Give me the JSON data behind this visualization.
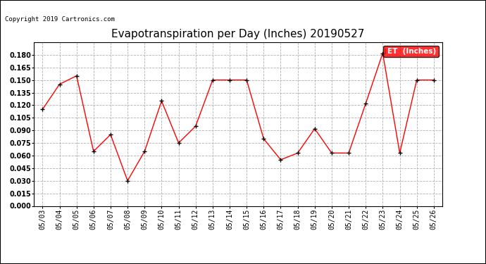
{
  "title": "Evapotranspiration per Day (Inches) 20190527",
  "copyright": "Copyright 2019 Cartronics.com",
  "legend_label": "ET  (Inches)",
  "dates": [
    "05/03",
    "05/04",
    "05/05",
    "05/06",
    "05/07",
    "05/08",
    "05/09",
    "05/10",
    "05/11",
    "05/12",
    "05/13",
    "05/14",
    "05/15",
    "05/16",
    "05/17",
    "05/18",
    "05/19",
    "05/20",
    "05/21",
    "05/22",
    "05/23",
    "05/24",
    "05/25",
    "05/26"
  ],
  "values": [
    0.115,
    0.145,
    0.155,
    0.065,
    0.085,
    0.03,
    0.065,
    0.125,
    0.075,
    0.095,
    0.15,
    0.15,
    0.15,
    0.08,
    0.055,
    0.063,
    0.092,
    0.063,
    0.063,
    0.122,
    0.182,
    0.063,
    0.15,
    0.15
  ],
  "ylim": [
    0.0,
    0.195
  ],
  "yticks": [
    0.0,
    0.015,
    0.03,
    0.045,
    0.06,
    0.075,
    0.09,
    0.105,
    0.12,
    0.135,
    0.15,
    0.165,
    0.18
  ],
  "line_color": "red",
  "marker_color": "black",
  "bg_color": "#ffffff",
  "grid_color": "#b0b0b0",
  "title_fontsize": 11,
  "tick_fontsize": 7,
  "legend_bg": "red",
  "legend_text_color": "white"
}
